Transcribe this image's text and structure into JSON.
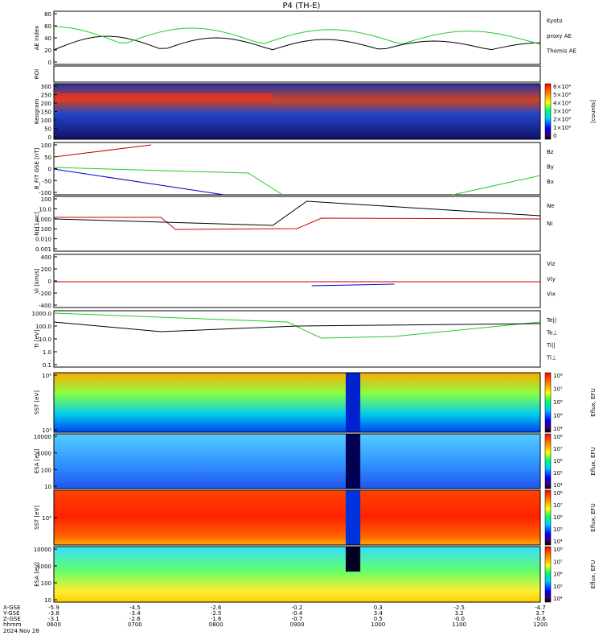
{
  "header": {
    "title": "P4 (TH-E)"
  },
  "chart_data": {
    "type": "multi-panel",
    "x_labels": [
      "0600",
      "0700",
      "0800",
      "0900",
      "1000",
      "1100",
      "1200"
    ],
    "x_rows": [
      {
        "name": "X-GSE",
        "values": [
          "-5.9",
          "-4.5",
          "-2.6",
          "-0.2",
          "0.3",
          "-2.5",
          "-4.7"
        ]
      },
      {
        "name": "Y-GSE",
        "values": [
          "-3.8",
          "-3.4",
          "-2.5",
          "-0.4",
          "3.4",
          "3.2",
          "3.7"
        ]
      },
      {
        "name": "Z-GSE",
        "values": [
          "-3.1",
          "-2.6",
          "-1.6",
          "-0.7",
          "0.5",
          "-0.0",
          "-0.6"
        ]
      },
      {
        "name": "hhmm",
        "values": [
          "0600",
          "0700",
          "0800",
          "0900",
          "1000",
          "1100",
          "1200"
        ]
      }
    ],
    "date_label": "2024 Nov 28",
    "panels": [
      {
        "ylabel": "AE index",
        "yticks": [
          "80",
          "60",
          "40",
          "20",
          "0"
        ],
        "legend": [
          {
            "text": "Kyoto",
            "color": "#22cc22"
          },
          {
            "text": "proxy AE",
            "color": "#22cc22"
          },
          {
            "text": "Themis AE",
            "color": "#000000"
          }
        ]
      },
      {
        "ylabel": "ROI",
        "yticks": [],
        "legend": []
      },
      {
        "ylabel": "Keogram",
        "yticks": [
          "300",
          "250",
          "200",
          "150",
          "100",
          "50",
          "0"
        ],
        "colorbar": {
          "label": "[counts]",
          "ticks": [
            "6×10⁴",
            "5×10⁴",
            "4×10⁴",
            "3×10⁴",
            "2×10⁴",
            "1×10⁴",
            "0"
          ]
        }
      },
      {
        "ylabel": "B_FIT GSE [nT]",
        "yticks": [
          "100",
          "50",
          "0",
          "-50",
          "-100"
        ],
        "legend": [
          {
            "text": "Bz",
            "color": "#cc0000"
          },
          {
            "text": "By",
            "color": "#22cc22"
          },
          {
            "text": "Bx",
            "color": "#0000cc"
          }
        ]
      },
      {
        "ylabel": "Ni [1/cc]",
        "yticks": [
          "100",
          "10.0",
          "1.000",
          "0.100",
          "0.010",
          "0.001"
        ],
        "legend": [
          {
            "text": "Ne",
            "color": "#cc0000"
          },
          {
            "text": "Ni",
            "color": "#000000"
          }
        ]
      },
      {
        "ylabel": "Vi [km/s]",
        "yticks": [
          "400",
          "200",
          "0",
          "-200",
          "-400"
        ],
        "legend": [
          {
            "text": "Viz",
            "color": "#cc0000"
          },
          {
            "text": "Viy",
            "color": "#22cc22"
          },
          {
            "text": "Vix",
            "color": "#0000cc"
          }
        ]
      },
      {
        "ylabel": "Ti [eV]",
        "yticks": [
          "1000.0",
          "100.0",
          "10.0",
          "1.0",
          "0.1"
        ],
        "legend": [
          {
            "text": "Te||",
            "color": "#000000"
          },
          {
            "text": "Te⊥",
            "color": "#cc0000"
          },
          {
            "text": "Ti||",
            "color": "#22cc22"
          },
          {
            "text": "Ti⊥",
            "color": "#0000cc"
          }
        ]
      },
      {
        "ylabel": "SST [eV]",
        "yticks": [
          "10⁶",
          "10⁵"
        ],
        "colorbar": {
          "label": "Eflux, EFU",
          "ticks": [
            "10⁸",
            "10⁷",
            "10⁶",
            "10⁵",
            "10⁴"
          ]
        }
      },
      {
        "ylabel": "ESA [eV]",
        "yticks": [
          "10000",
          "1000",
          "100",
          "10"
        ],
        "colorbar": {
          "label": "Eflux, EFU",
          "ticks": [
            "10⁸",
            "10⁷",
            "10⁶",
            "10⁵",
            "10⁴"
          ]
        }
      },
      {
        "ylabel": "SST [eV]",
        "yticks": [
          "10⁵"
        ],
        "colorbar": {
          "label": "Eflux, EFU",
          "ticks": [
            "10⁸",
            "10⁷",
            "10⁶",
            "10⁵",
            "10⁴"
          ]
        }
      },
      {
        "ylabel": "ESA [eV]",
        "yticks": [
          "10000",
          "1000",
          "100",
          "10"
        ],
        "colorbar": {
          "label": "Eflux, EFU",
          "ticks": [
            "10⁸",
            "10⁷",
            "10⁶",
            "10⁵",
            "10⁴"
          ]
        }
      }
    ]
  }
}
